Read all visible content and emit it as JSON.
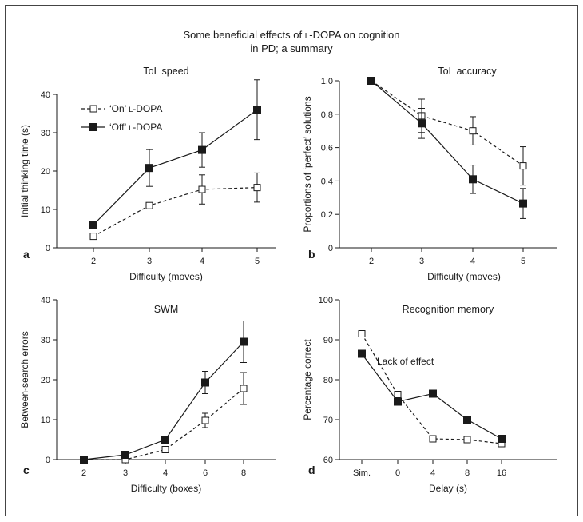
{
  "figure": {
    "title_line1": "Some beneficial effects of L-DOPA on cognition",
    "title_line2": "in PD; a summary"
  },
  "chart_data": [
    {
      "panel": "a",
      "type": "line",
      "title": "ToL speed",
      "xlabel": "Difficulty (moves)",
      "ylabel": "Initial thinking time (s)",
      "categories": [
        "2",
        "3",
        "4",
        "5"
      ],
      "ylim": [
        0,
        40
      ],
      "yticks": [
        "0",
        "10",
        "20",
        "30",
        "40"
      ],
      "legend": "top-left",
      "series": [
        {
          "name": "‘On’ L-DOPA",
          "marker": "open-square",
          "line": "dashed",
          "values": [
            3,
            11,
            15.2,
            15.7
          ],
          "errors": [
            null,
            null,
            3.8,
            3.8
          ]
        },
        {
          "name": "‘Off’ L-DOPA",
          "marker": "filled-square",
          "line": "solid",
          "values": [
            6,
            20.8,
            25.5,
            36
          ],
          "errors": [
            null,
            4.8,
            4.5,
            7.8
          ]
        }
      ]
    },
    {
      "panel": "b",
      "type": "line",
      "title": "ToL accuracy",
      "xlabel": "Difficulty (moves)",
      "ylabel": "Proportions of ‘perfect’ solutions",
      "categories": [
        "2",
        "3",
        "4",
        "5"
      ],
      "ylim": [
        0,
        1.0
      ],
      "yticks": [
        "0",
        "0.2",
        "0.4",
        "0.6",
        "0.8",
        "1.0"
      ],
      "series": [
        {
          "marker": "open-square",
          "line": "dashed",
          "values": [
            1.0,
            0.79,
            0.7,
            0.49
          ],
          "errors": [
            null,
            0.1,
            0.085,
            0.115
          ]
        },
        {
          "marker": "filled-square",
          "line": "solid",
          "values": [
            1.0,
            0.745,
            0.41,
            0.265
          ],
          "errors": [
            null,
            0.09,
            0.085,
            0.09
          ]
        }
      ]
    },
    {
      "panel": "c",
      "type": "line",
      "title": "SWM",
      "xlabel": "Difficulty (boxes)",
      "ylabel": "Between-search errors",
      "categories": [
        "2",
        "3",
        "4",
        "6",
        "8"
      ],
      "ylim": [
        0,
        40
      ],
      "yticks": [
        "0",
        "10",
        "20",
        "30",
        "40"
      ],
      "series": [
        {
          "marker": "open-square",
          "line": "dashed",
          "values": [
            0,
            0,
            2.5,
            9.8,
            17.8
          ],
          "errors": [
            null,
            null,
            null,
            1.8,
            4.0
          ]
        },
        {
          "marker": "filled-square",
          "line": "solid",
          "values": [
            0,
            1.2,
            5,
            19.3,
            29.5
          ],
          "errors": [
            null,
            null,
            null,
            2.8,
            5.2
          ]
        }
      ]
    },
    {
      "panel": "d",
      "type": "line",
      "title": "Recognition memory",
      "xlabel": "Delay (s)",
      "ylabel": "Percentage correct",
      "categories": [
        "Sim.",
        "0",
        "4",
        "8",
        "16"
      ],
      "ylim": [
        60,
        100
      ],
      "yticks": [
        "60",
        "70",
        "80",
        "90",
        "100"
      ],
      "annotation": "Lack of effect",
      "series": [
        {
          "marker": "open-square",
          "line": "dashed",
          "values": [
            91.5,
            76.3,
            65.2,
            65,
            64
          ]
        },
        {
          "marker": "filled-square",
          "line": "solid",
          "values": [
            86.5,
            74.5,
            76.5,
            70,
            65.2
          ]
        }
      ]
    }
  ]
}
